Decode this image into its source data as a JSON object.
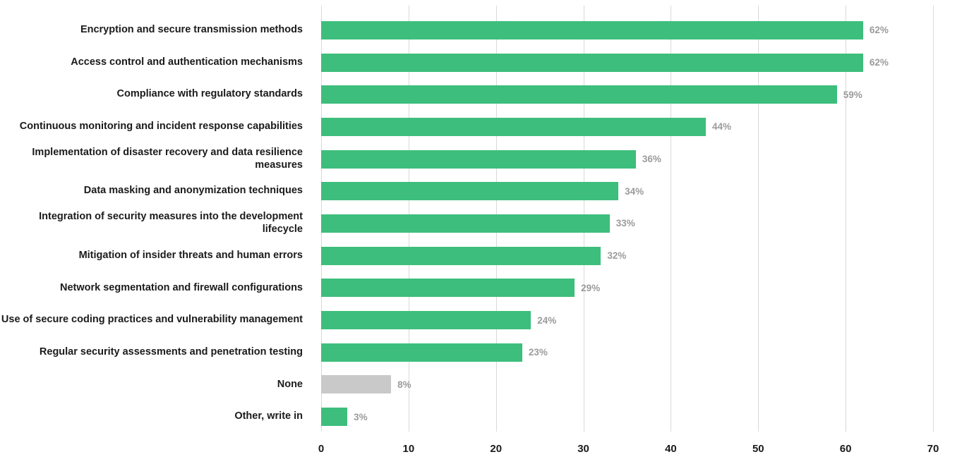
{
  "chart_data": {
    "type": "bar",
    "orientation": "horizontal",
    "title": "",
    "xlabel": "",
    "ylabel": "",
    "xlim": [
      0,
      70
    ],
    "xticks": [
      "0",
      "10",
      "20",
      "30",
      "40",
      "50",
      "60",
      "70"
    ],
    "grid": true,
    "legend": false,
    "categories": [
      "Encryption and secure transmission methods",
      "Access control and authentication mechanisms",
      "Compliance with regulatory standards",
      "Continuous monitoring and incident response capabilities",
      "Implementation of disaster recovery and data resilience measures",
      "Data masking and anonymization techniques",
      "Integration of security measures into the development lifecycle",
      "Mitigation of insider threats and human errors",
      "Network segmentation and firewall configurations",
      "Use of secure coding practices and vulnerability management",
      "Regular security assessments and penetration testing",
      "None",
      "Other, write in"
    ],
    "values": [
      62,
      62,
      59,
      44,
      36,
      34,
      33,
      32,
      29,
      24,
      23,
      8,
      3
    ],
    "value_labels": [
      "62%",
      "62%",
      "59%",
      "44%",
      "36%",
      "34%",
      "33%",
      "32%",
      "29%",
      "24%",
      "23%",
      "8%",
      "3%"
    ],
    "bar_colors": [
      "#3dbe7c",
      "#3dbe7c",
      "#3dbe7c",
      "#3dbe7c",
      "#3dbe7c",
      "#3dbe7c",
      "#3dbe7c",
      "#3dbe7c",
      "#3dbe7c",
      "#3dbe7c",
      "#3dbe7c",
      "#c9c9c9",
      "#3dbe7c"
    ],
    "colors": {
      "bar": "#3dbe7c",
      "none_bar": "#c9c9c9",
      "value_label": "#9b9b9b",
      "gridline": "#d9d9d9",
      "axis_text": "#1b1b1b",
      "background": "#ffffff"
    }
  }
}
